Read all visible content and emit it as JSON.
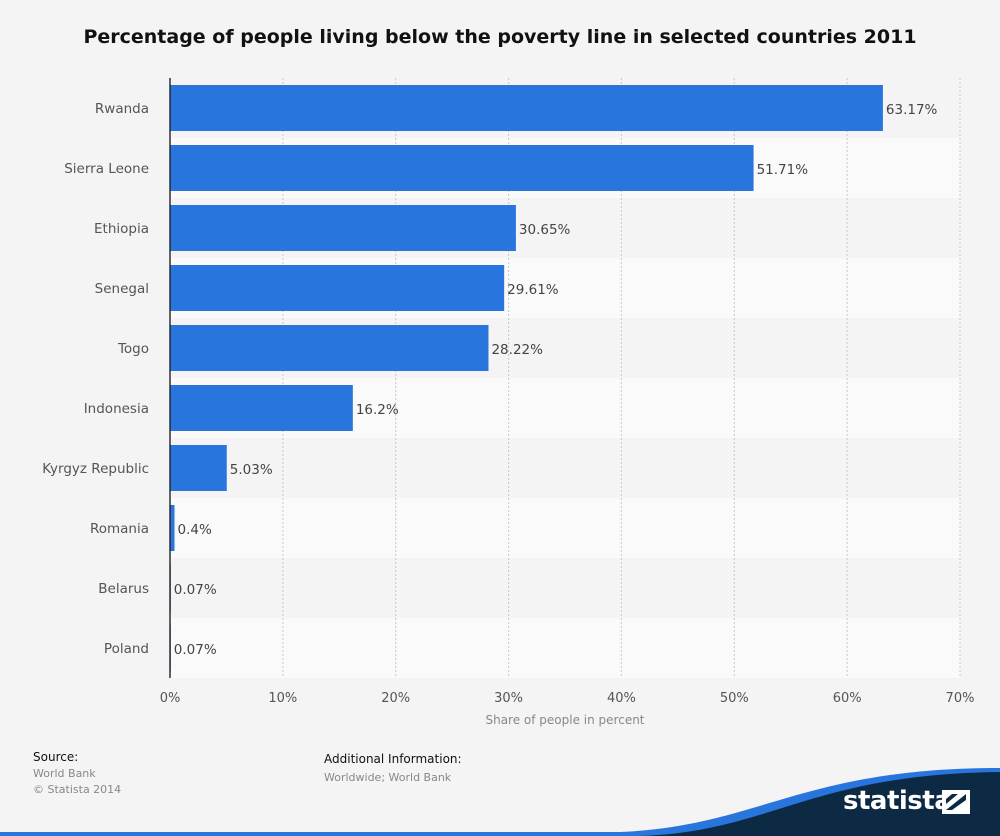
{
  "chart_data": {
    "type": "bar",
    "orientation": "horizontal",
    "title": "Percentage of people living below the poverty line in selected countries 2011",
    "xlabel": "Share of people in percent",
    "categories": [
      "Rwanda",
      "Sierra Leone",
      "Ethiopia",
      "Senegal",
      "Togo",
      "Indonesia",
      "Kyrgyz Republic",
      "Romania",
      "Belarus",
      "Poland"
    ],
    "values": [
      63.17,
      51.71,
      30.65,
      29.61,
      28.22,
      16.2,
      5.03,
      0.4,
      0.07,
      0.07
    ],
    "value_labels": [
      "63.17%",
      "51.71%",
      "30.65%",
      "29.61%",
      "28.22%",
      "16.2%",
      "5.03%",
      "0.4%",
      "0.07%",
      "0.07%"
    ],
    "xlim": [
      0,
      70
    ],
    "xticks": [
      "0%",
      "10%",
      "20%",
      "30%",
      "40%",
      "50%",
      "60%",
      "70%"
    ],
    "grid": true,
    "bar_color": "#2876dd"
  },
  "footer": {
    "source_label": "Source:",
    "source_lines": [
      "World Bank",
      "© Statista 2014"
    ],
    "info_label": "Additional Information:",
    "info_text": "Worldwide; World Bank"
  },
  "brand": {
    "name": "statista",
    "colors": {
      "dark": "#0d2a44",
      "accent": "#2876dd"
    }
  }
}
